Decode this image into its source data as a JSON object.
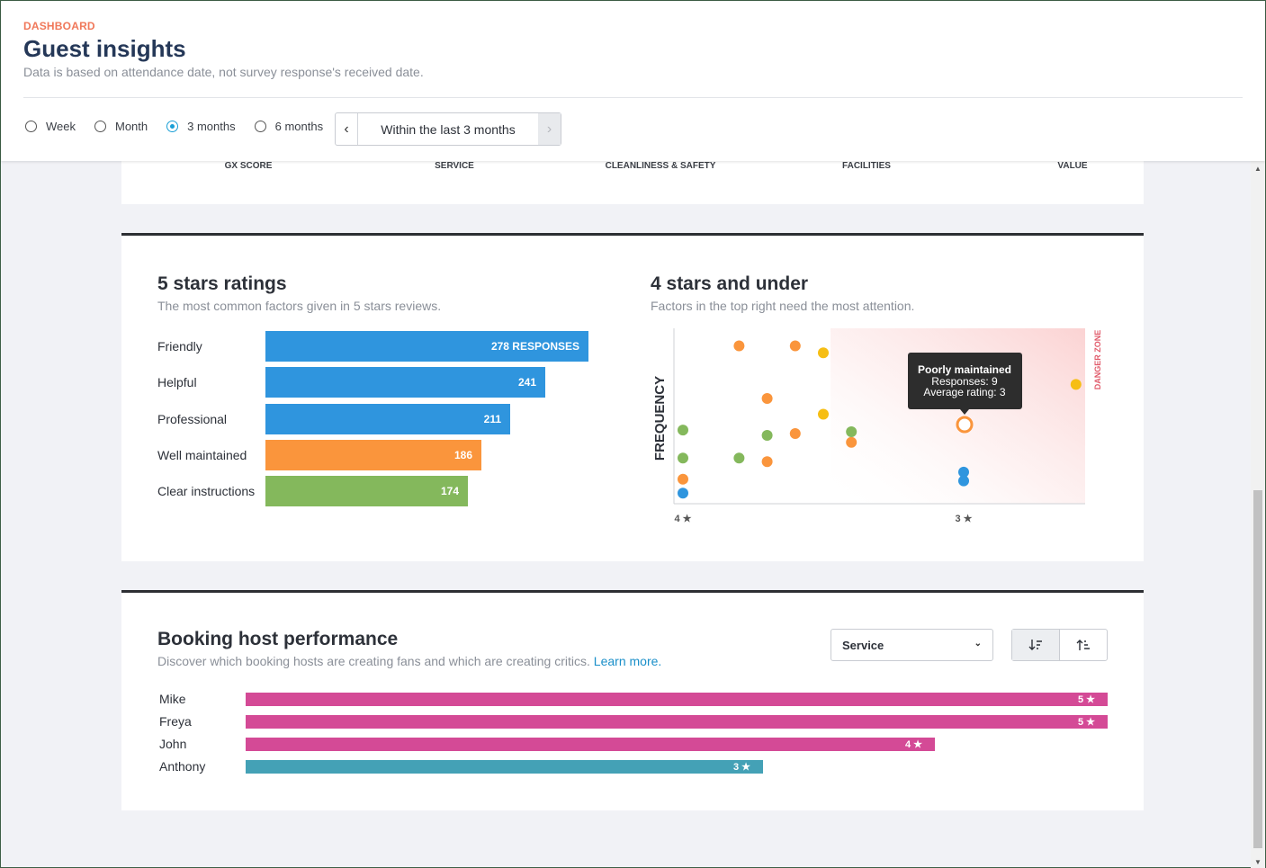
{
  "header": {
    "eyebrow": "DASHBOARD",
    "title": "Guest insights",
    "subtitle": "Data is based on attendance date, not survey response's received date.",
    "periods": [
      {
        "label": "Week",
        "selected": false
      },
      {
        "label": "Month",
        "selected": false
      },
      {
        "label": "3 months",
        "selected": true
      },
      {
        "label": "6 months",
        "selected": false
      }
    ],
    "range_label": "Within the last 3 months",
    "prev_icon": "chevron-left-icon",
    "next_icon": "chevron-right-icon"
  },
  "metrics": [
    "GX SCORE",
    "SERVICE",
    "CLEANLINESS & SAFETY",
    "FACILITIES",
    "VALUE"
  ],
  "five_stars": {
    "title": "5 stars ratings",
    "subtitle": "The most common factors given in 5 stars reviews."
  },
  "four_under": {
    "title": "4 stars and under",
    "subtitle": "Factors in the top right need the most attention.",
    "ylabel": "FREQUENCY",
    "danger_label": "DANGER ZONE",
    "tick_4": "4 ★",
    "tick_3": "3 ★",
    "tooltip": {
      "title": "Poorly maintained",
      "line1": "Responses: 9",
      "line2": "Average rating: 3"
    }
  },
  "hosts": {
    "title": "Booking host performance",
    "subtitle": "Discover which booking hosts are creating fans and which are creating critics.",
    "learn_more": "Learn more.",
    "select_value": "Service",
    "sort_desc_icon": "sort-descending-icon",
    "sort_asc_icon": "sort-ascending-icon",
    "rows": [
      {
        "name": "Mike",
        "label": "5 ★",
        "value": 5,
        "color": "#d44a96"
      },
      {
        "name": "Freya",
        "label": "5 ★",
        "value": 5,
        "color": "#d44a96"
      },
      {
        "name": "John",
        "label": "4 ★",
        "value": 4,
        "color": "#d44a96"
      },
      {
        "name": "Anthony",
        "label": "3 ★",
        "value": 3,
        "color": "#44a1b6"
      }
    ]
  },
  "colors": {
    "blue": "#2f95de",
    "orange": "#fa953c",
    "green": "#84b85c",
    "yellow": "#f6be14",
    "pink": "#d44a96",
    "teal": "#44a1b6",
    "eyebrow": "#f0785a",
    "title": "#253858"
  },
  "chart_data": [
    {
      "type": "bar",
      "title": "5 stars ratings",
      "categories": [
        "Friendly",
        "Helpful",
        "Professional",
        "Well maintained",
        "Clear instructions"
      ],
      "values": [
        278,
        241,
        211,
        186,
        174
      ],
      "value_labels": [
        "278 RESPONSES",
        "241",
        "211",
        "186",
        "174"
      ],
      "colors": [
        "#2f95de",
        "#2f95de",
        "#2f95de",
        "#fa953c",
        "#84b85c"
      ]
    },
    {
      "type": "scatter",
      "title": "4 stars and under",
      "ylabel": "FREQUENCY",
      "x_ticks": [
        4,
        3
      ],
      "series": [
        {
          "color": "#fa953c",
          "points": [
            [
              3.8,
              9
            ],
            [
              3.6,
              9
            ],
            [
              3.7,
              6
            ],
            [
              3.6,
              4
            ],
            [
              3.4,
              3.5
            ],
            [
              3.7,
              2.4
            ],
            [
              4.0,
              1.4
            ],
            [
              3.0,
              4.6
            ]
          ]
        },
        {
          "color": "#f6be14",
          "points": [
            [
              3.5,
              8.6
            ],
            [
              3.5,
              5.1
            ],
            [
              2.6,
              6.8
            ]
          ]
        },
        {
          "color": "#84b85c",
          "points": [
            [
              4.0,
              4.2
            ],
            [
              4.0,
              2.6
            ],
            [
              3.8,
              2.6
            ],
            [
              3.7,
              3.9
            ],
            [
              3.4,
              4.1
            ]
          ]
        },
        {
          "color": "#2f95de",
          "points": [
            [
              4.0,
              0.6
            ],
            [
              3.0,
              1.8
            ],
            [
              3.0,
              1.3
            ]
          ]
        }
      ],
      "highlight": {
        "name": "Poorly maintained",
        "responses": 9,
        "average_rating": 3
      }
    }
  ]
}
